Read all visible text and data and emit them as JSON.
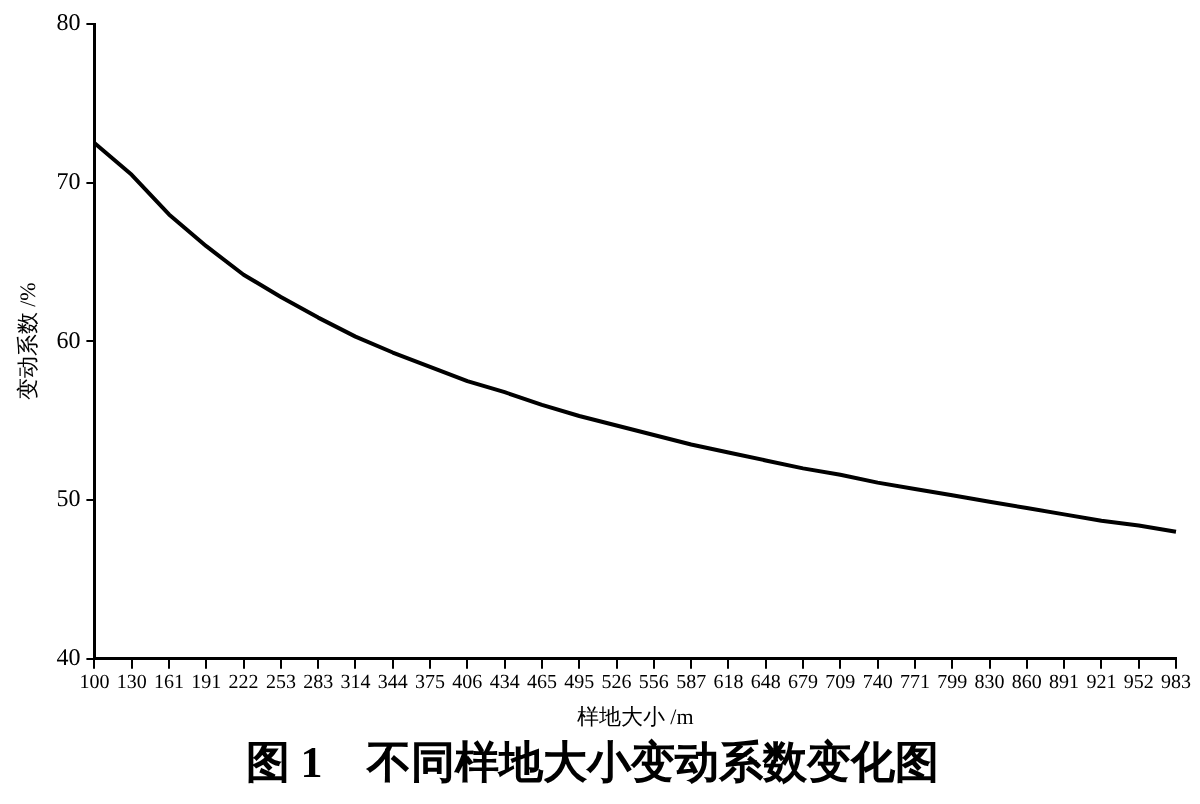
{
  "chart_data": {
    "type": "line",
    "title": "图 1　不同样地大小变动系数变化图",
    "xlabel": "样地大小 /m",
    "ylabel": "变动系数 /%",
    "categories": [
      "100",
      "130",
      "161",
      "191",
      "222",
      "253",
      "283",
      "314",
      "344",
      "375",
      "406",
      "434",
      "465",
      "495",
      "526",
      "556",
      "587",
      "618",
      "648",
      "679",
      "709",
      "740",
      "771",
      "799",
      "830",
      "860",
      "891",
      "921",
      "952",
      "983"
    ],
    "series": [
      {
        "color": "#000000",
        "values": [
          72.5,
          70.5,
          68.0,
          66.0,
          64.2,
          62.8,
          61.5,
          60.3,
          59.3,
          58.4,
          57.5,
          56.8,
          56.0,
          55.3,
          54.7,
          54.1,
          53.5,
          53.0,
          52.5,
          52.0,
          51.6,
          51.1,
          50.7,
          50.3,
          49.9,
          49.5,
          49.1,
          48.7,
          48.4,
          48.0
        ]
      }
    ],
    "ylim": [
      40,
      80
    ],
    "yticks": [
      40,
      50,
      60,
      70,
      80
    ],
    "grid": false,
    "legend": false,
    "marker": "none",
    "line_style": "solid"
  }
}
